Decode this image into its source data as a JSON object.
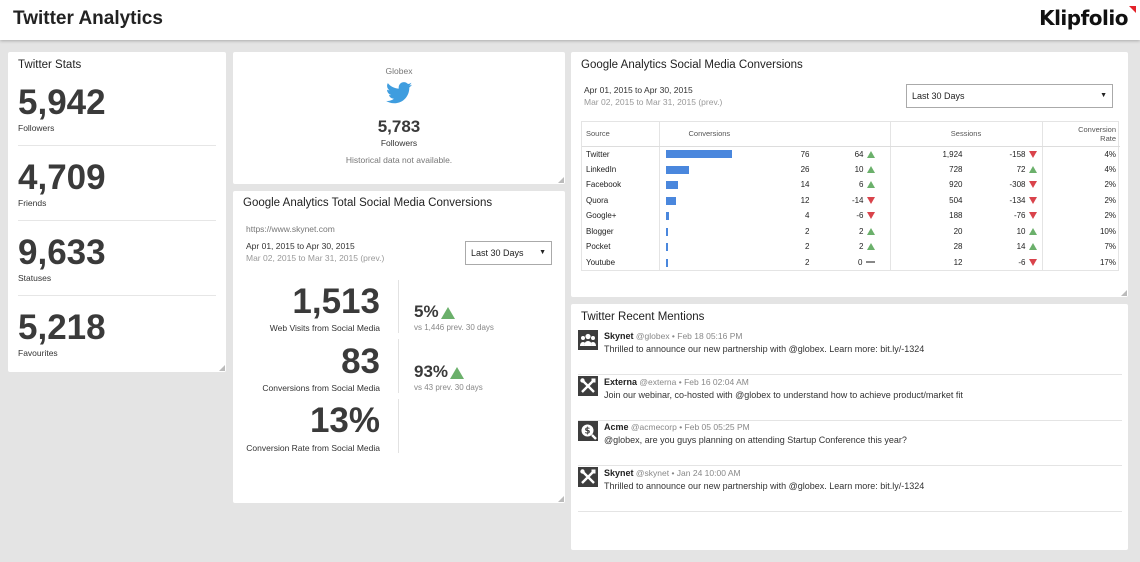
{
  "header": {
    "title": "Twitter Analytics",
    "logo": "Klipfolio"
  },
  "twitter_stats": {
    "title": "Twitter Stats",
    "items": [
      {
        "value": "5,942",
        "label": "Followers"
      },
      {
        "value": "4,709",
        "label": "Friends"
      },
      {
        "value": "9,633",
        "label": "Statuses"
      },
      {
        "value": "5,218",
        "label": "Favourites"
      }
    ]
  },
  "followers_card": {
    "name": "Globex",
    "icon": "twitter-bird-icon",
    "value": "5,783",
    "label": "Followers",
    "note": "Historical data not available."
  },
  "total_conversions": {
    "title": "Google Analytics Total Social Media Conversions",
    "url": "https://www.skynet.com",
    "date_range": "Apr 01, 2015 to Apr 30, 2015",
    "prev_range": "Mar 02, 2015 to Mar 31, 2015 (prev.)",
    "dropdown": "Last 30 Days",
    "kpis": [
      {
        "value": "1,513",
        "label": "Web Visits from Social Media",
        "change": "5%",
        "sub": "vs 1,446 prev. 30 days"
      },
      {
        "value": "83",
        "label": "Conversions from Social Media",
        "change": "93%",
        "sub": "vs 43 prev. 30 days"
      },
      {
        "value": "13%",
        "label": "Conversion Rate from Social Media"
      }
    ]
  },
  "conversions_table": {
    "title": "Google Analytics Social Media Conversions",
    "date_range": "Apr 01, 2015 to Apr 30, 2015",
    "prev_range": "Mar 02, 2015 to Mar 31, 2015 (prev.)",
    "dropdown": "Last 30 Days",
    "headers": {
      "source": "Source",
      "conversions": "Conversions",
      "sessions": "Sessions",
      "rate_line1": "Conversion",
      "rate_line2": "Rate"
    },
    "rows": [
      {
        "source": "Twitter",
        "conversions": 76,
        "prev_conv": "64",
        "conv_trend": "up",
        "sessions": "1,924",
        "sess_change": "-158",
        "sess_trend": "down",
        "rate": "4%"
      },
      {
        "source": "LinkedIn",
        "conversions": 26,
        "prev_conv": "10",
        "conv_trend": "up",
        "sessions": "728",
        "sess_change": "72",
        "sess_trend": "up",
        "rate": "4%"
      },
      {
        "source": "Facebook",
        "conversions": 14,
        "prev_conv": "6",
        "conv_trend": "up",
        "sessions": "920",
        "sess_change": "-308",
        "sess_trend": "down",
        "rate": "2%"
      },
      {
        "source": "Quora",
        "conversions": 12,
        "prev_conv": "-14",
        "conv_trend": "down",
        "sessions": "504",
        "sess_change": "-134",
        "sess_trend": "down",
        "rate": "2%"
      },
      {
        "source": "Google+",
        "conversions": 4,
        "prev_conv": "-6",
        "conv_trend": "down",
        "sessions": "188",
        "sess_change": "-76",
        "sess_trend": "down",
        "rate": "2%"
      },
      {
        "source": "Blogger",
        "conversions": 2,
        "prev_conv": "2",
        "conv_trend": "up",
        "sessions": "20",
        "sess_change": "10",
        "sess_trend": "up",
        "rate": "10%"
      },
      {
        "source": "Pocket",
        "conversions": 2,
        "prev_conv": "2",
        "conv_trend": "up",
        "sessions": "28",
        "sess_change": "14",
        "sess_trend": "up",
        "rate": "7%"
      },
      {
        "source": "Youtube",
        "conversions": 2,
        "prev_conv": "0",
        "conv_trend": "flat",
        "sessions": "12",
        "sess_change": "-6",
        "sess_trend": "down",
        "rate": "17%"
      }
    ]
  },
  "mentions": {
    "title": "Twitter Recent Mentions",
    "items": [
      {
        "name": "Skynet",
        "meta": "@globex • Feb 18 05:16 PM",
        "text": "Thrilled to announce our new partnership with @globex. Learn more: bit.ly/-1324",
        "icon": "people-icon"
      },
      {
        "name": "Externa",
        "meta": "@externa • Feb 16 02:04 AM",
        "text": "Join our webinar, co-hosted with @globex to understand how to achieve product/market fit",
        "icon": "tools-icon"
      },
      {
        "name": "Acme",
        "meta": "@acmecorp • Feb 05 05:25 PM",
        "text": "@globex, are you guys planning on attending Startup Conference this year?",
        "icon": "money-icon"
      },
      {
        "name": "Skynet",
        "meta": "@skynet • Jan 24 10:00 AM",
        "text": "Thrilled to announce our new partnership with @globex. Learn more: bit.ly/-1324",
        "icon": "tools-icon"
      }
    ]
  },
  "colors": {
    "bar": "#4a87dd",
    "up": "#6bb06b",
    "down": "#d9434b",
    "twitter": "#3f9ddf"
  }
}
